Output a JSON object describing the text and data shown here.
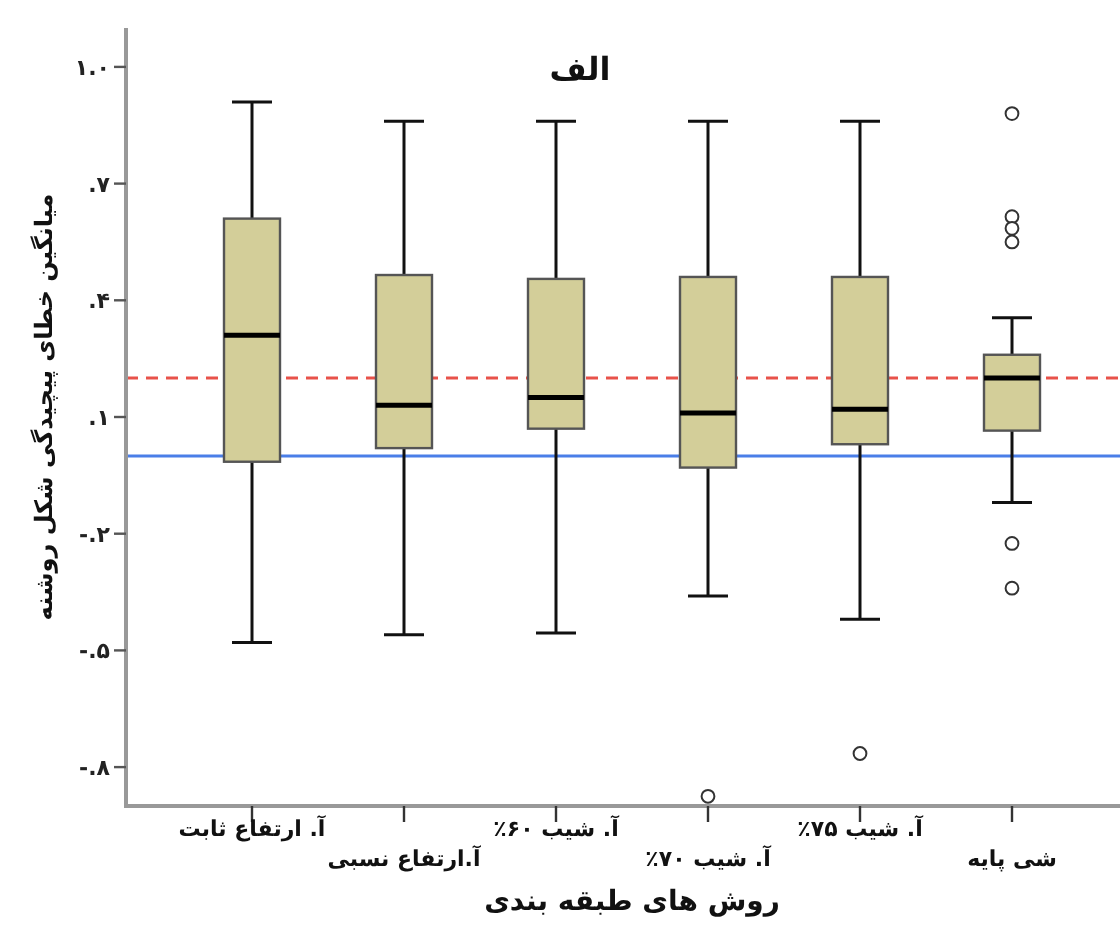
{
  "chart_data": {
    "type": "box",
    "title": "الف",
    "xlabel": "روش های طبقه بندی",
    "ylabel": "میانگین خطای پیچیدگی شکل روشنه",
    "categories": [
      "آ. ارتفاع ثابت",
      "آ.ارتفاع نسبی",
      "آ. شیب ۶۰٪",
      "آ. شیب ۷۰٪",
      "آ. شیب ۷۵٪",
      "شی پایه"
    ],
    "color": "#d3ce99",
    "boxes": [
      {
        "low": -0.48,
        "q1": -0.015,
        "median": 0.31,
        "q3": 0.61,
        "high": 0.91
      },
      {
        "low": -0.46,
        "q1": 0.02,
        "median": 0.13,
        "q3": 0.465,
        "high": 0.86
      },
      {
        "low": -0.455,
        "q1": 0.07,
        "median": 0.15,
        "q3": 0.455,
        "high": 0.86
      },
      {
        "low": -0.36,
        "q1": -0.03,
        "median": 0.11,
        "q3": 0.46,
        "high": 0.86,
        "outliers": [
          -0.875
        ]
      },
      {
        "low": -0.42,
        "q1": 0.03,
        "median": 0.12,
        "q3": 0.46,
        "high": 0.86,
        "outliers": [
          -0.765
        ]
      },
      {
        "low": -0.12,
        "q1": 0.065,
        "median": 0.2,
        "q3": 0.26,
        "high": 0.355,
        "outliers": [
          0.88,
          0.615,
          0.585,
          0.55,
          -0.225,
          -0.34
        ]
      }
    ],
    "ylim": [
      -0.9,
      1.1
    ],
    "yticks": [
      {
        "value": 1.0,
        "label": "۱.۰"
      },
      {
        "value": 0.7,
        "label": ".۷"
      },
      {
        "value": 0.4,
        "label": ".۴"
      },
      {
        "value": 0.1,
        "label": ".۱"
      },
      {
        "value": -0.2,
        "label": "-.۲"
      },
      {
        "value": -0.5,
        "label": "-.۵"
      },
      {
        "value": -0.8,
        "label": "-.۸"
      }
    ],
    "ref_lines": [
      {
        "axis": "y",
        "value": 0.2,
        "color": "#e8524a",
        "line_style": "dashed"
      },
      {
        "axis": "y",
        "value": 0.0,
        "color": "#4a7ee8",
        "line_style": "solid"
      }
    ],
    "grid": false
  }
}
